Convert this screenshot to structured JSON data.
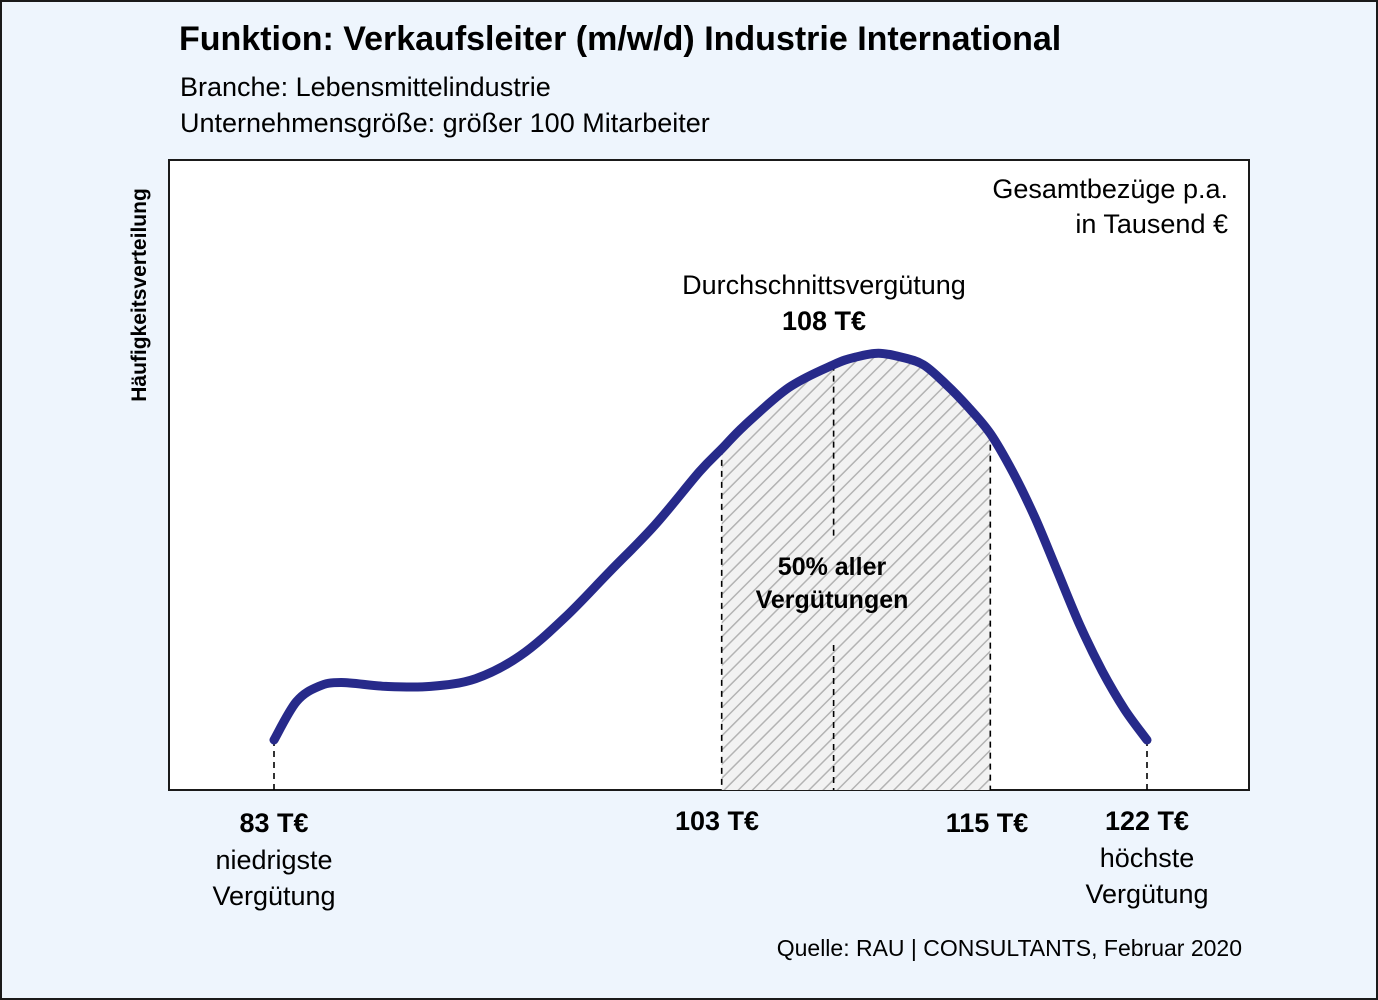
{
  "header": {
    "title": "Funktion: Verkaufsleiter (m/w/d) Industrie International",
    "branche": "Branche: Lebensmittelindustrie",
    "groesse": "Unternehmensgröße: größer 100 Mitarbeiter"
  },
  "source": "Quelle: RAU | CONSULTANTS, Februar 2020",
  "colors": {
    "background": "#eef5fd",
    "curve": "#272a8a",
    "hatch": "#b3b3b3",
    "plot_background": "#ffffff"
  },
  "chart_data": {
    "type": "area",
    "ylabel": "Häufigkeitsverteilung",
    "units_label": [
      "Gesamtbezüge p.a.",
      "in Tausend €"
    ],
    "x_range": [
      83,
      122
    ],
    "grid": false,
    "curve": {
      "x": [
        83,
        84,
        85,
        86,
        88,
        90,
        92,
        94,
        96,
        98,
        100,
        102,
        103,
        104,
        106,
        108,
        109,
        110,
        111,
        112,
        113,
        114,
        115,
        116,
        117,
        118,
        119,
        120,
        121,
        122
      ],
      "y": [
        0.0,
        0.1,
        0.14,
        0.15,
        0.14,
        0.14,
        0.16,
        0.22,
        0.32,
        0.44,
        0.56,
        0.7,
        0.76,
        0.82,
        0.92,
        0.98,
        1.0,
        1.01,
        1.0,
        0.98,
        0.93,
        0.87,
        0.8,
        0.7,
        0.58,
        0.44,
        0.3,
        0.18,
        0.08,
        0.0
      ]
    },
    "average": {
      "label": "Durchschnittsvergütung",
      "value_label": "108 T€",
      "value": 108
    },
    "middle_50": {
      "label": [
        "50% aller",
        "Vergütungen"
      ],
      "from": 103,
      "to": 115
    },
    "x_markers": [
      {
        "value": 83,
        "label": "83 T€",
        "desc": [
          "niedrigste",
          "Vergütung"
        ]
      },
      {
        "value": 103,
        "label": "103 T€",
        "desc": []
      },
      {
        "value": 115,
        "label": "115 T€",
        "desc": []
      },
      {
        "value": 122,
        "label": "122 T€",
        "desc": [
          "höchste",
          "Vergütung"
        ]
      }
    ]
  }
}
